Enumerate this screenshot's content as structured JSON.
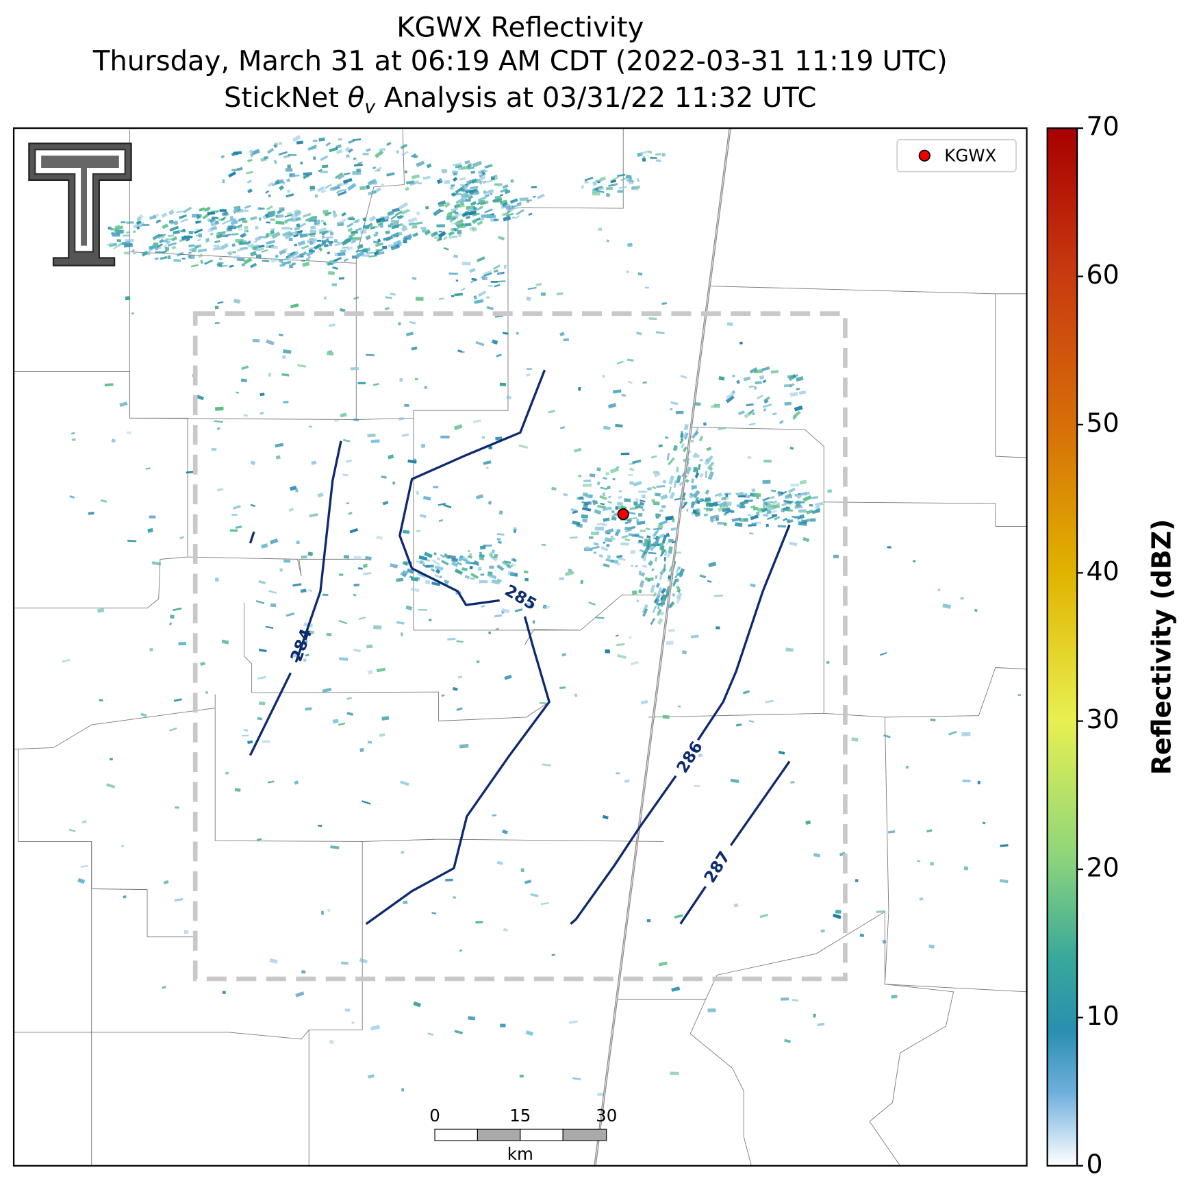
{
  "title": {
    "line1": "KGWX Reflectivity",
    "line2": "Thursday, March 31 at 06:19 AM CDT (2022-03-31 11:19 UTC)",
    "line3": {
      "prefix": "StickNet ",
      "symbol": "θ",
      "subscript": "v",
      "suffix": " Analysis at 03/31/22 11:32 UTC"
    }
  },
  "legend": {
    "label": "KGWX"
  },
  "colorbar": {
    "label": "Reflectivity (dBZ)",
    "lim": [
      0,
      70
    ],
    "ticks": [
      0,
      10,
      20,
      30,
      40,
      50,
      60,
      70
    ]
  },
  "contours": {
    "levels": [
      284,
      285,
      286,
      287
    ]
  },
  "scale_bar": {
    "ticks": [
      0,
      15,
      30
    ],
    "unit": "km"
  }
}
